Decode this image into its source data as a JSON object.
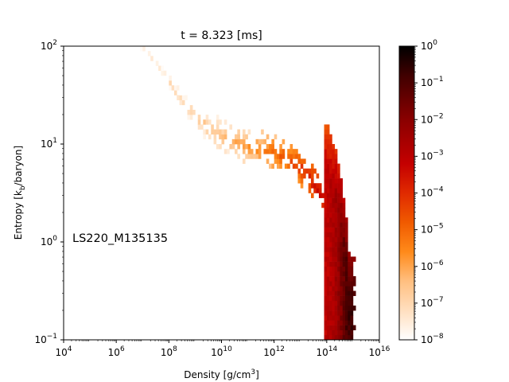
{
  "chart_data": {
    "type": "heatmap",
    "title": "t = 8.323 [ms]",
    "annotation": "LS220_M135135",
    "xlabel": "Density [g/cm3]",
    "ylabel": "Entropy [kb/baryon]",
    "xscale": "log",
    "yscale": "log",
    "xlim": [
      10000,
      10000000000000000
    ],
    "ylim": [
      0.1,
      100
    ],
    "x_ticks": [
      {
        "base": "10",
        "exp": "4"
      },
      {
        "base": "10",
        "exp": "6"
      },
      {
        "base": "10",
        "exp": "8"
      },
      {
        "base": "10",
        "exp": "10"
      },
      {
        "base": "10",
        "exp": "12"
      },
      {
        "base": "10",
        "exp": "14"
      },
      {
        "base": "10",
        "exp": "16"
      }
    ],
    "y_ticks": [
      {
        "base": "10",
        "exp": "−1"
      },
      {
        "base": "10",
        "exp": "0"
      },
      {
        "base": "10",
        "exp": "1"
      },
      {
        "base": "10",
        "exp": "2"
      }
    ],
    "colorbar": {
      "scale": "log",
      "range": [
        1e-08,
        1
      ],
      "colormap": "gist_heat_r",
      "ticks": [
        {
          "base": "10",
          "exp": "0"
        },
        {
          "base": "10",
          "exp": "−1"
        },
        {
          "base": "10",
          "exp": "−2"
        },
        {
          "base": "10",
          "exp": "−3"
        },
        {
          "base": "10",
          "exp": "−4"
        },
        {
          "base": "10",
          "exp": "−5"
        },
        {
          "base": "10",
          "exp": "−6"
        },
        {
          "base": "10",
          "exp": "−7"
        },
        {
          "base": "10",
          "exp": "−8"
        }
      ]
    },
    "grid": false,
    "distribution_ridge": [
      {
        "log_density": 6.8,
        "log_entropy": 2.0,
        "log_mass_fraction": -7.8
      },
      {
        "log_density": 7.5,
        "log_entropy": 1.8,
        "log_mass_fraction": -7.5
      },
      {
        "log_density": 8.0,
        "log_entropy": 1.6,
        "log_mass_fraction": -7.2
      },
      {
        "log_density": 8.5,
        "log_entropy": 1.4,
        "log_mass_fraction": -7.0
      },
      {
        "log_density": 9.0,
        "log_entropy": 1.25,
        "log_mass_fraction": -6.8
      },
      {
        "log_density": 9.5,
        "log_entropy": 1.15,
        "log_mass_fraction": -6.6
      },
      {
        "log_density": 10.0,
        "log_entropy": 1.05,
        "log_mass_fraction": -6.4
      },
      {
        "log_density": 10.5,
        "log_entropy": 1.0,
        "log_mass_fraction": -6.1
      },
      {
        "log_density": 11.0,
        "log_entropy": 0.95,
        "log_mass_fraction": -5.8
      },
      {
        "log_density": 11.5,
        "log_entropy": 0.92,
        "log_mass_fraction": -5.4
      },
      {
        "log_density": 12.0,
        "log_entropy": 0.88,
        "log_mass_fraction": -5.0
      },
      {
        "log_density": 12.5,
        "log_entropy": 0.82,
        "log_mass_fraction": -4.6
      },
      {
        "log_density": 13.0,
        "log_entropy": 0.72,
        "log_mass_fraction": -4.2
      },
      {
        "log_density": 13.5,
        "log_entropy": 0.55,
        "log_mass_fraction": -3.6
      },
      {
        "log_density": 14.0,
        "log_entropy": 0.35,
        "log_mass_fraction": -3.0
      },
      {
        "log_density": 14.3,
        "log_entropy": 0.1,
        "log_mass_fraction": -2.5
      },
      {
        "log_density": 14.5,
        "log_entropy": -0.2,
        "log_mass_fraction": -1.8
      },
      {
        "log_density": 14.7,
        "log_entropy": -0.6,
        "log_mass_fraction": -1.0
      },
      {
        "log_density": 14.8,
        "log_entropy": -0.95,
        "log_mass_fraction": -0.8
      }
    ]
  }
}
